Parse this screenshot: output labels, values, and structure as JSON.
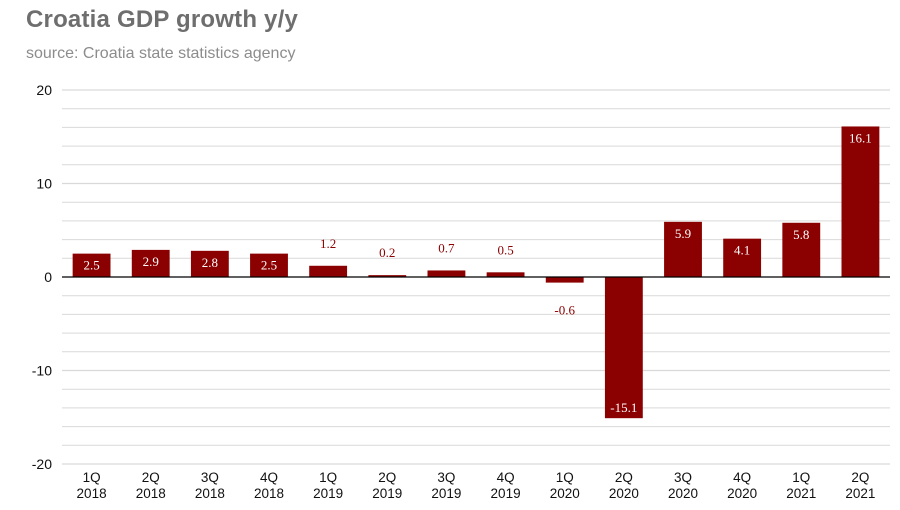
{
  "chart_data": {
    "type": "bar",
    "title": "Croatia GDP growth y/y",
    "subtitle": "source: Croatia state statistics agency",
    "categories": [
      [
        "1Q",
        "2018"
      ],
      [
        "2Q",
        "2018"
      ],
      [
        "3Q",
        "2018"
      ],
      [
        "4Q",
        "2018"
      ],
      [
        "1Q",
        "2019"
      ],
      [
        "2Q",
        "2019"
      ],
      [
        "3Q",
        "2019"
      ],
      [
        "4Q",
        "2019"
      ],
      [
        "1Q",
        "2020"
      ],
      [
        "2Q",
        "2020"
      ],
      [
        "3Q",
        "2020"
      ],
      [
        "4Q",
        "2020"
      ],
      [
        "1Q",
        "2021"
      ],
      [
        "2Q",
        "2021"
      ]
    ],
    "values": [
      2.5,
      2.9,
      2.8,
      2.5,
      1.2,
      0.2,
      0.7,
      0.5,
      -0.6,
      -15.1,
      5.9,
      4.1,
      5.8,
      16.1
    ],
    "data_labels": [
      "2.5",
      "2.9",
      "2.8",
      "2.5",
      "1.2",
      "0.2",
      "0.7",
      "0.5",
      "-0.6",
      "-15.1",
      "5.9",
      "4.1",
      "5.8",
      "16.1"
    ],
    "ylim": [
      -20,
      20
    ],
    "yticks": [
      20,
      10,
      0,
      -10,
      -20
    ],
    "minor_grid_step": 2,
    "grid": true,
    "xlabel": "",
    "ylabel": "",
    "colors": {
      "bar": "#8b0000",
      "label_inside": "#ffffff",
      "label_outside": "#8b0000",
      "grid": "#d9d9d9",
      "zero_line": "#000000"
    }
  }
}
